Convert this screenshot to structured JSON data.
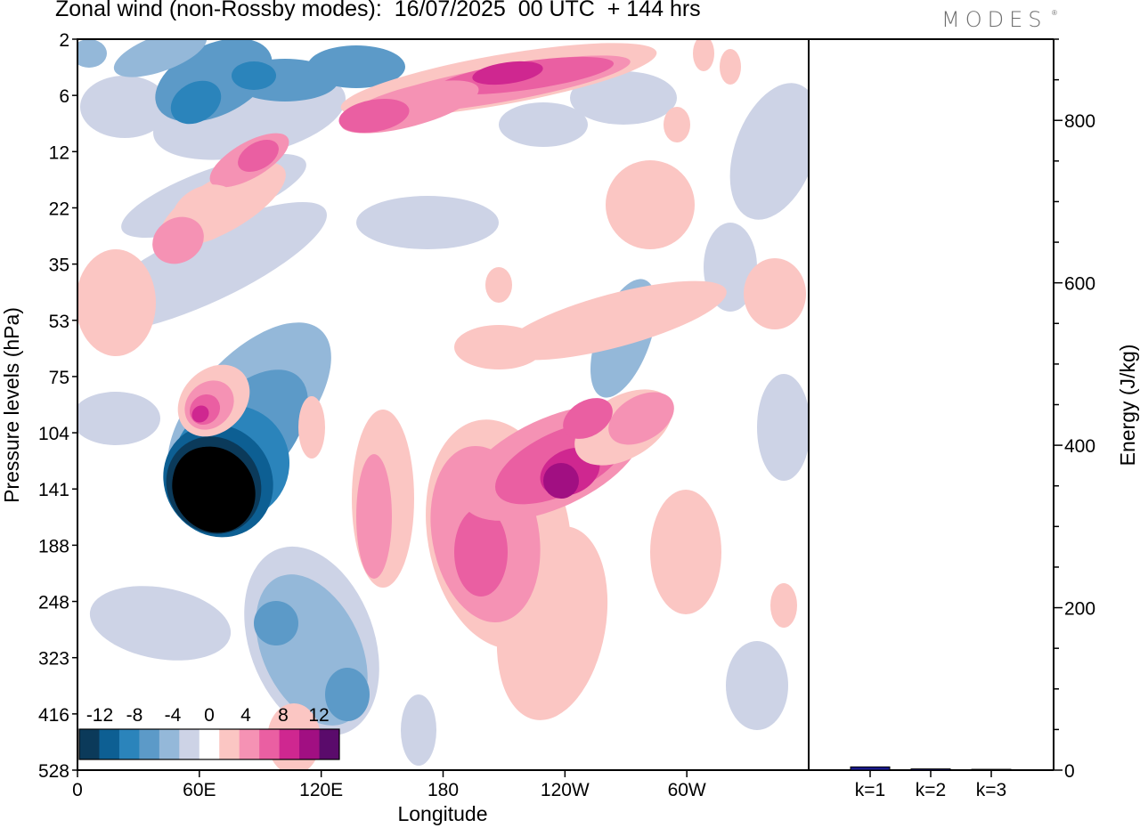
{
  "title": "Zonal wind (non-Rossby modes):  16/07/2025  00 UTC  + 144 hrs",
  "brand": "MODES",
  "brand_mark": "®",
  "chart_data": [
    {
      "type": "heatmap",
      "title": "Zonal wind (non-Rossby modes):  16/07/2025  00 UTC  + 144 hrs",
      "xlabel": "Longitude",
      "ylabel": "Pressure levels (hPa)",
      "x_ticks": [
        "0",
        "60E",
        "120E",
        "180",
        "120W",
        "60W"
      ],
      "x_tick_positions_deg": [
        0,
        60,
        120,
        180,
        240,
        300
      ],
      "xlim": [
        0,
        360
      ],
      "y_ticks": [
        "2",
        "6",
        "12",
        "22",
        "35",
        "53",
        "75",
        "104",
        "141",
        "188",
        "248",
        "323",
        "416",
        "528"
      ],
      "colorbar": {
        "labels": [
          "-12",
          "-8",
          "-4",
          "0",
          "4",
          "8",
          "12"
        ],
        "levels": [
          -14,
          -12,
          -10,
          -8,
          -6,
          -4,
          -2,
          2,
          4,
          6,
          8,
          10,
          12,
          14
        ],
        "colors": [
          "#0b3a5a",
          "#0d5f93",
          "#2b84bb",
          "#5c9ac8",
          "#94b8d9",
          "#cdd3e6",
          "#ffffff",
          "#fbc6c3",
          "#f592b4",
          "#ea5fa2",
          "#cf2790",
          "#a10f82",
          "#5a0b6b"
        ]
      },
      "features": [
        {
          "kind": "negative",
          "peak": -14,
          "lon": 55,
          "level_from": "104",
          "level_to": "188"
        },
        {
          "kind": "negative",
          "peak": -10,
          "lon": 60,
          "level_from": "2",
          "level_to": "12"
        },
        {
          "kind": "positive",
          "peak": 12,
          "lon": 200,
          "level_from": "2",
          "level_to": "6"
        },
        {
          "kind": "positive",
          "peak": 10,
          "lon": 240,
          "level_from": "104",
          "level_to": "188"
        },
        {
          "kind": "positive",
          "peak": 10,
          "lon": 62,
          "level_from": "75",
          "level_to": "104"
        }
      ]
    },
    {
      "type": "bar",
      "ylabel": "Energy (J/kg)",
      "categories": [
        "k=1",
        "k=2",
        "k=3"
      ],
      "values": [
        4,
        1.5,
        1
      ],
      "ylim": [
        0,
        900
      ],
      "y_ticks": [
        "0",
        "200",
        "400",
        "600",
        "800"
      ],
      "bar_color": "#1a1a8c"
    }
  ]
}
